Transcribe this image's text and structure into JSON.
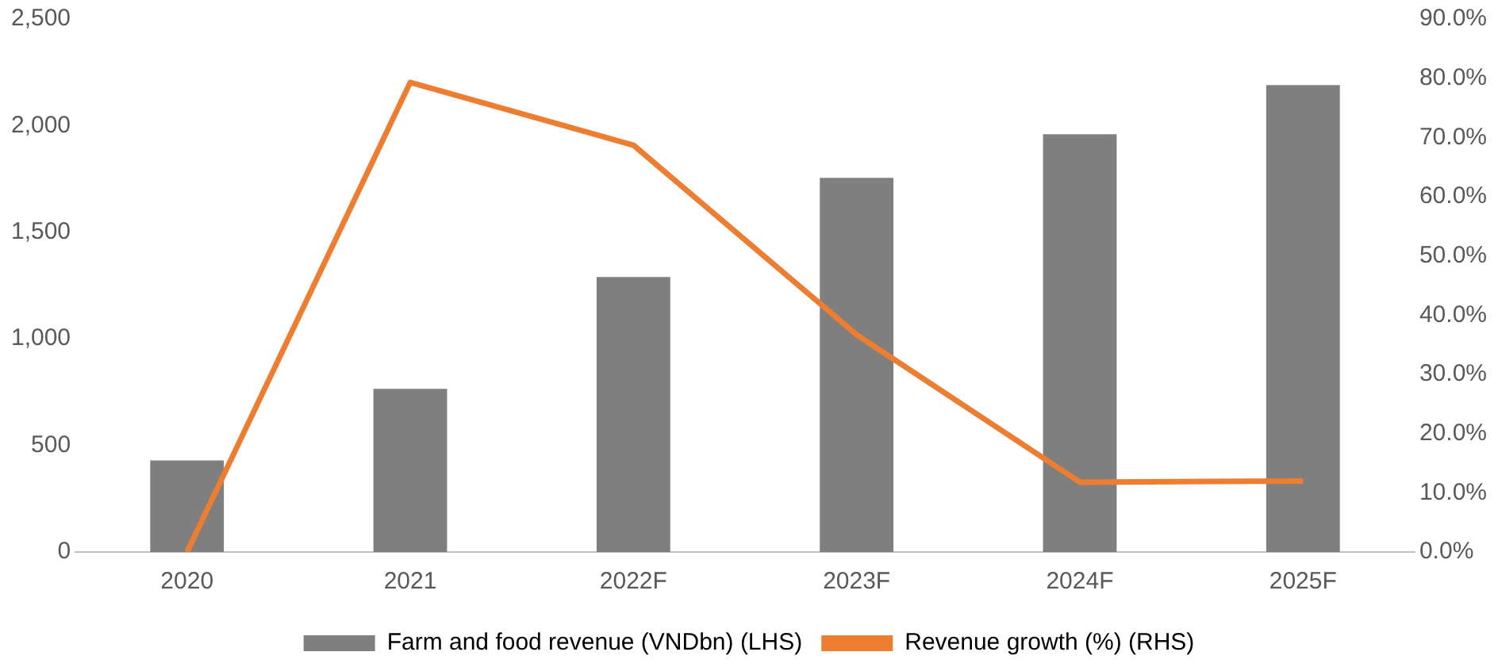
{
  "chart_data": {
    "type": "bar",
    "categories": [
      "2020",
      "2021",
      "2022F",
      "2023F",
      "2024F",
      "2025F"
    ],
    "series": [
      {
        "name": "Farm and food revenue (VNDbn) (LHS)",
        "color": "#7f7f7f",
        "values": [
          430,
          765,
          1290,
          1755,
          1960,
          2190
        ]
      },
      {
        "name": "Revenue growth (%) (RHS)",
        "type": "line",
        "axis": "y2",
        "color": "#ed7d31",
        "marker": "none",
        "values": [
          0,
          79.3,
          68.7,
          36.7,
          11.8,
          12.0
        ]
      }
    ],
    "ylim": [
      0,
      2500
    ],
    "yticks": [
      0,
      500,
      {
        "value": 1000,
        "label": "1,000"
      },
      {
        "value": 1500,
        "label": "1,500"
      },
      {
        "value": 2000,
        "label": "2,000"
      },
      {
        "value": 2500,
        "label": "2,500"
      }
    ],
    "y2lim": [
      0,
      90
    ],
    "y2ticks": [
      {
        "value": 0,
        "label": "0.0%"
      },
      {
        "value": 10,
        "label": "10.0%"
      },
      {
        "value": 20,
        "label": "20.0%"
      },
      {
        "value": 30,
        "label": "30.0%"
      },
      {
        "value": 40,
        "label": "40.0%"
      },
      {
        "value": 50,
        "label": "50.0%"
      },
      {
        "value": 60,
        "label": "60.0%"
      },
      {
        "value": 70,
        "label": "70.0%"
      },
      {
        "value": 80,
        "label": "80.0%"
      },
      {
        "value": 90,
        "label": "90.0%"
      }
    ],
    "grid": false,
    "legend": "bottom"
  }
}
